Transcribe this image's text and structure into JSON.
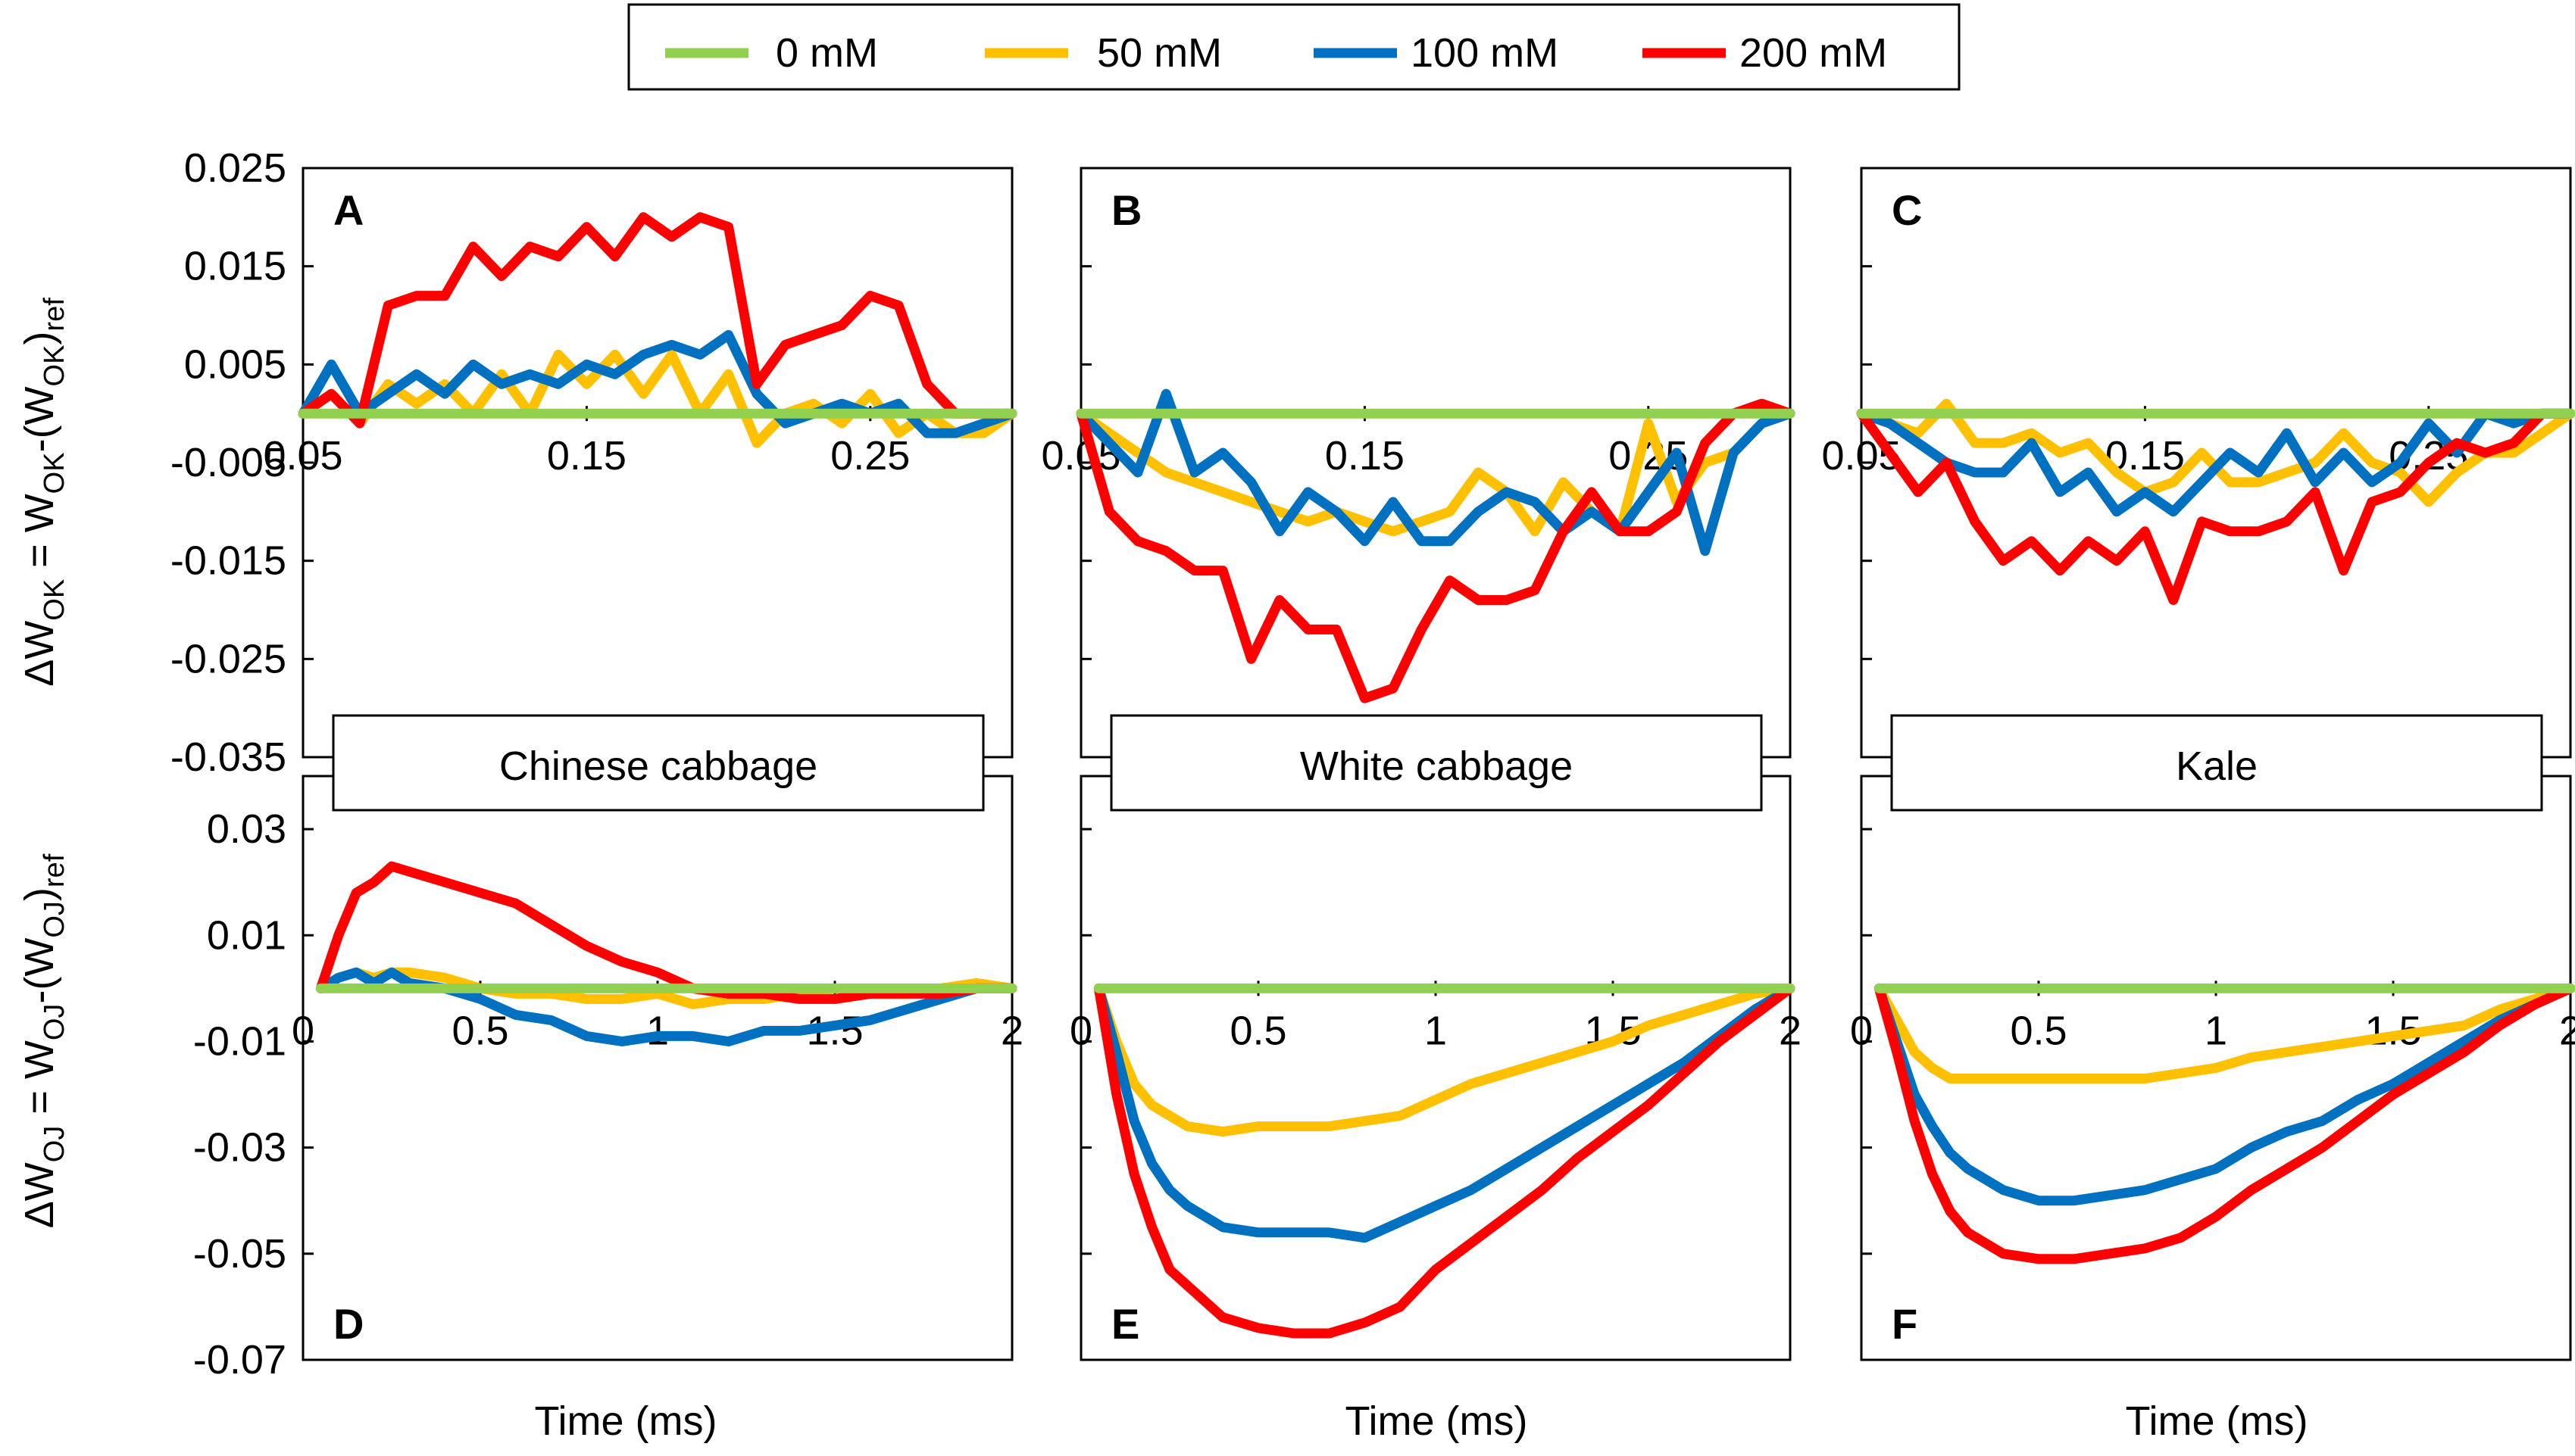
{
  "legend": {
    "entries": [
      {
        "label": "0 mM",
        "color": "#92D050"
      },
      {
        "label": "50 mM",
        "color": "#FFC000"
      },
      {
        "label": "100 mM",
        "color": "#0070C0"
      },
      {
        "label": "200 mM",
        "color": "#FF0000"
      }
    ]
  },
  "row_ylabels": {
    "top": {
      "main": "ΔW",
      "sub1": "OK",
      "mid": " = W",
      "sub2": "OK",
      "mid2": "-(W",
      "sub3": "OK",
      "mid3": ")",
      "sub4": "ref"
    },
    "bottom": {
      "main": "ΔW",
      "sub1": "OJ",
      "mid": " = W",
      "sub2": "OJ",
      "mid2": "-(W",
      "sub3": "OJ",
      "mid3": ")",
      "sub4": "ref"
    }
  },
  "column_titles": [
    "Chinese cabbage",
    "White cabbage",
    "Kale"
  ],
  "xlabel": "Time (ms)",
  "chart_data": [
    {
      "panel": "A",
      "type": "line",
      "species": "Chinese cabbage",
      "xlim": [
        0.05,
        0.3
      ],
      "ylim": [
        -0.035,
        0.025
      ],
      "xticks": [
        0.05,
        0.15,
        0.25
      ],
      "xtick_labels": [
        "0.05",
        "0.15",
        "0.25"
      ],
      "yticks": [
        0.025,
        0.015,
        0.005,
        -0.005,
        -0.015,
        -0.025,
        -0.035
      ],
      "ytick_labels": [
        "0.025",
        "0.015",
        "0.005",
        "-0.005",
        "-0.015",
        "-0.025",
        "-0.035"
      ],
      "x": [
        0.05,
        0.06,
        0.07,
        0.08,
        0.09,
        0.1,
        0.11,
        0.12,
        0.13,
        0.14,
        0.15,
        0.16,
        0.17,
        0.18,
        0.19,
        0.2,
        0.21,
        0.22,
        0.23,
        0.24,
        0.25,
        0.26,
        0.27,
        0.28,
        0.29,
        0.3
      ],
      "series": [
        {
          "name": "0 mM",
          "values": [
            0,
            0,
            0,
            0,
            0,
            0,
            0,
            0,
            0,
            0,
            0,
            0,
            0,
            0,
            0,
            0,
            0,
            0,
            0,
            0,
            0,
            0,
            0,
            0,
            0,
            0
          ]
        },
        {
          "name": "50 mM",
          "values": [
            0,
            0.002,
            -0.001,
            0.003,
            0.001,
            0.003,
            0.0,
            0.004,
            0.0,
            0.006,
            0.003,
            0.006,
            0.002,
            0.006,
            0.0,
            0.004,
            -0.003,
            0.0,
            0.001,
            -0.001,
            0.002,
            -0.002,
            0.0,
            -0.002,
            -0.002,
            0.0
          ]
        },
        {
          "name": "100 mM",
          "values": [
            0,
            0.005,
            0.0,
            0.002,
            0.004,
            0.002,
            0.005,
            0.003,
            0.004,
            0.003,
            0.005,
            0.004,
            0.006,
            0.007,
            0.006,
            0.008,
            0.002,
            -0.001,
            0.0,
            0.001,
            0.0,
            0.001,
            -0.002,
            -0.002,
            -0.001,
            0.0
          ]
        },
        {
          "name": "200 mM",
          "values": [
            0,
            0.002,
            -0.001,
            0.011,
            0.012,
            0.012,
            0.017,
            0.014,
            0.017,
            0.016,
            0.019,
            0.016,
            0.02,
            0.018,
            0.02,
            0.019,
            0.003,
            0.007,
            0.008,
            0.009,
            0.012,
            0.011,
            0.003,
            0.0,
            0.0,
            0.0
          ]
        }
      ]
    },
    {
      "panel": "B",
      "type": "line",
      "species": "White cabbage",
      "xlim": [
        0.05,
        0.3
      ],
      "ylim": [
        -0.035,
        0.025
      ],
      "xticks": [
        0.05,
        0.15,
        0.25
      ],
      "xtick_labels": [
        "0.05",
        "0.15",
        "0.25"
      ],
      "x": [
        0.05,
        0.06,
        0.07,
        0.08,
        0.09,
        0.1,
        0.11,
        0.12,
        0.13,
        0.14,
        0.15,
        0.16,
        0.17,
        0.18,
        0.19,
        0.2,
        0.21,
        0.22,
        0.23,
        0.24,
        0.25,
        0.26,
        0.27,
        0.28,
        0.29,
        0.3
      ],
      "series": [
        {
          "name": "0 mM",
          "values": [
            0,
            0,
            0,
            0,
            0,
            0,
            0,
            0,
            0,
            0,
            0,
            0,
            0,
            0,
            0,
            0,
            0,
            0,
            0,
            0,
            0,
            0,
            0,
            0,
            0,
            0
          ]
        },
        {
          "name": "50 mM",
          "values": [
            0,
            -0.002,
            -0.004,
            -0.006,
            -0.007,
            -0.008,
            -0.009,
            -0.01,
            -0.011,
            -0.01,
            -0.011,
            -0.012,
            -0.011,
            -0.01,
            -0.006,
            -0.008,
            -0.012,
            -0.007,
            -0.01,
            -0.012,
            -0.001,
            -0.009,
            -0.005,
            -0.004,
            -0.001,
            0.0
          ]
        },
        {
          "name": "100 mM",
          "values": [
            0,
            -0.003,
            -0.006,
            0.002,
            -0.006,
            -0.004,
            -0.007,
            -0.012,
            -0.008,
            -0.01,
            -0.013,
            -0.009,
            -0.013,
            -0.013,
            -0.01,
            -0.008,
            -0.009,
            -0.012,
            -0.01,
            -0.012,
            -0.008,
            -0.004,
            -0.014,
            -0.004,
            -0.001,
            0.0
          ]
        },
        {
          "name": "200 mM",
          "values": [
            0,
            -0.01,
            -0.013,
            -0.014,
            -0.016,
            -0.016,
            -0.025,
            -0.019,
            -0.022,
            -0.022,
            -0.029,
            -0.028,
            -0.022,
            -0.017,
            -0.019,
            -0.019,
            -0.018,
            -0.012,
            -0.008,
            -0.012,
            -0.012,
            -0.01,
            -0.003,
            0.0,
            0.001,
            0.0
          ]
        }
      ]
    },
    {
      "panel": "C",
      "type": "line",
      "species": "Kale",
      "xlim": [
        0.05,
        0.3
      ],
      "ylim": [
        -0.035,
        0.025
      ],
      "xticks": [
        0.05,
        0.15,
        0.25
      ],
      "xtick_labels": [
        "0.05",
        "0.15",
        "0.25"
      ],
      "x": [
        0.05,
        0.06,
        0.07,
        0.08,
        0.09,
        0.1,
        0.11,
        0.12,
        0.13,
        0.14,
        0.15,
        0.16,
        0.17,
        0.18,
        0.19,
        0.2,
        0.21,
        0.22,
        0.23,
        0.24,
        0.25,
        0.26,
        0.27,
        0.28,
        0.29,
        0.3
      ],
      "series": [
        {
          "name": "0 mM",
          "values": [
            0,
            0,
            0,
            0,
            0,
            0,
            0,
            0,
            0,
            0,
            0,
            0,
            0,
            0,
            0,
            0,
            0,
            0,
            0,
            0,
            0,
            0,
            0,
            0,
            0,
            0
          ]
        },
        {
          "name": "50 mM",
          "values": [
            0,
            -0.001,
            -0.002,
            0.001,
            -0.003,
            -0.003,
            -0.002,
            -0.004,
            -0.003,
            -0.006,
            -0.008,
            -0.007,
            -0.004,
            -0.007,
            -0.007,
            -0.006,
            -0.005,
            -0.002,
            -0.005,
            -0.006,
            -0.009,
            -0.006,
            -0.004,
            -0.004,
            -0.002,
            0.0
          ]
        },
        {
          "name": "100 mM",
          "values": [
            0,
            -0.001,
            -0.003,
            -0.005,
            -0.006,
            -0.006,
            -0.003,
            -0.008,
            -0.006,
            -0.01,
            -0.008,
            -0.01,
            -0.007,
            -0.004,
            -0.006,
            -0.002,
            -0.007,
            -0.004,
            -0.007,
            -0.005,
            -0.001,
            -0.004,
            0.0,
            -0.001,
            0.0,
            0.0
          ]
        },
        {
          "name": "200 mM",
          "values": [
            0,
            -0.004,
            -0.008,
            -0.005,
            -0.011,
            -0.015,
            -0.013,
            -0.016,
            -0.013,
            -0.015,
            -0.012,
            -0.019,
            -0.011,
            -0.012,
            -0.012,
            -0.011,
            -0.008,
            -0.016,
            -0.009,
            -0.008,
            -0.005,
            -0.003,
            -0.004,
            -0.003,
            0.0,
            0.0
          ]
        }
      ]
    },
    {
      "panel": "D",
      "type": "line",
      "species": "Chinese cabbage",
      "xlim": [
        0,
        2
      ],
      "ylim": [
        -0.07,
        0.04
      ],
      "xticks": [
        0,
        0.5,
        1,
        1.5,
        2
      ],
      "xtick_labels": [
        "0",
        "0.5",
        "1",
        "1.5",
        "2"
      ],
      "yticks": [
        0.03,
        0.01,
        -0.01,
        -0.03,
        -0.05,
        -0.07
      ],
      "ytick_labels": [
        "0.03",
        "0.01",
        "-0.01",
        "-0.03",
        "-0.05",
        "-0.07"
      ],
      "x": [
        0.05,
        0.1,
        0.15,
        0.2,
        0.25,
        0.3,
        0.4,
        0.5,
        0.6,
        0.7,
        0.8,
        0.9,
        1.0,
        1.1,
        1.2,
        1.3,
        1.4,
        1.5,
        1.6,
        1.7,
        1.8,
        1.9,
        2.0
      ],
      "series": [
        {
          "name": "0 mM",
          "values": [
            0,
            0,
            0,
            0,
            0,
            0,
            0,
            0,
            0,
            0,
            0,
            0,
            0,
            0,
            0,
            0,
            0,
            0,
            0,
            0,
            0,
            0,
            0
          ]
        },
        {
          "name": "50 mM",
          "values": [
            0,
            0.002,
            0.003,
            0.002,
            0.003,
            0.003,
            0.002,
            0.0,
            -0.001,
            -0.001,
            -0.002,
            -0.002,
            -0.001,
            -0.003,
            -0.002,
            -0.002,
            -0.001,
            -0.002,
            -0.001,
            -0.001,
            0.0,
            0.001,
            0.0
          ]
        },
        {
          "name": "100 mM",
          "values": [
            0,
            0.002,
            0.003,
            0.001,
            0.003,
            0.001,
            0.0,
            -0.002,
            -0.005,
            -0.006,
            -0.009,
            -0.01,
            -0.009,
            -0.009,
            -0.01,
            -0.008,
            -0.008,
            -0.007,
            -0.006,
            -0.004,
            -0.002,
            0.0,
            0.0
          ]
        },
        {
          "name": "200 mM",
          "values": [
            0,
            0.01,
            0.018,
            0.02,
            0.023,
            0.022,
            0.02,
            0.018,
            0.016,
            0.012,
            0.008,
            0.005,
            0.003,
            0.0,
            -0.001,
            -0.001,
            -0.002,
            -0.002,
            -0.001,
            -0.001,
            -0.001,
            0.0,
            0.0
          ]
        }
      ]
    },
    {
      "panel": "E",
      "type": "line",
      "species": "White cabbage",
      "xlim": [
        0,
        2
      ],
      "ylim": [
        -0.07,
        0.04
      ],
      "xticks": [
        0,
        0.5,
        1,
        1.5,
        2
      ],
      "xtick_labels": [
        "0",
        "0.5",
        "1",
        "1.5",
        "2"
      ],
      "x": [
        0.05,
        0.1,
        0.15,
        0.2,
        0.25,
        0.3,
        0.4,
        0.5,
        0.6,
        0.7,
        0.8,
        0.9,
        1.0,
        1.1,
        1.2,
        1.3,
        1.4,
        1.5,
        1.6,
        1.7,
        1.8,
        1.9,
        2.0
      ],
      "series": [
        {
          "name": "0 mM",
          "values": [
            0,
            0,
            0,
            0,
            0,
            0,
            0,
            0,
            0,
            0,
            0,
            0,
            0,
            0,
            0,
            0,
            0,
            0,
            0,
            0,
            0,
            0,
            0
          ]
        },
        {
          "name": "50 mM",
          "values": [
            0,
            -0.01,
            -0.018,
            -0.022,
            -0.024,
            -0.026,
            -0.027,
            -0.026,
            -0.026,
            -0.026,
            -0.025,
            -0.024,
            -0.021,
            -0.018,
            -0.016,
            -0.014,
            -0.012,
            -0.01,
            -0.007,
            -0.005,
            -0.003,
            -0.001,
            0.0
          ]
        },
        {
          "name": "100 mM",
          "values": [
            0,
            -0.012,
            -0.025,
            -0.033,
            -0.038,
            -0.041,
            -0.045,
            -0.046,
            -0.046,
            -0.046,
            -0.047,
            -0.044,
            -0.041,
            -0.038,
            -0.034,
            -0.03,
            -0.026,
            -0.022,
            -0.018,
            -0.014,
            -0.009,
            -0.004,
            0.0
          ]
        },
        {
          "name": "200 mM",
          "values": [
            0,
            -0.02,
            -0.035,
            -0.045,
            -0.053,
            -0.056,
            -0.062,
            -0.064,
            -0.065,
            -0.065,
            -0.063,
            -0.06,
            -0.053,
            -0.048,
            -0.043,
            -0.038,
            -0.032,
            -0.027,
            -0.022,
            -0.016,
            -0.01,
            -0.005,
            0.0
          ]
        }
      ]
    },
    {
      "panel": "F",
      "type": "line",
      "species": "Kale",
      "xlim": [
        0,
        2
      ],
      "ylim": [
        -0.07,
        0.04
      ],
      "xticks": [
        0,
        0.5,
        1,
        1.5,
        2
      ],
      "xtick_labels": [
        "0",
        "0.5",
        "1",
        "1.5",
        "2"
      ],
      "x": [
        0.05,
        0.1,
        0.15,
        0.2,
        0.25,
        0.3,
        0.4,
        0.5,
        0.6,
        0.7,
        0.8,
        0.9,
        1.0,
        1.1,
        1.2,
        1.3,
        1.4,
        1.5,
        1.6,
        1.7,
        1.8,
        1.9,
        2.0
      ],
      "series": [
        {
          "name": "0 mM",
          "values": [
            0,
            0,
            0,
            0,
            0,
            0,
            0,
            0,
            0,
            0,
            0,
            0,
            0,
            0,
            0,
            0,
            0,
            0,
            0,
            0,
            0,
            0,
            0
          ]
        },
        {
          "name": "50 mM",
          "values": [
            0,
            -0.006,
            -0.012,
            -0.015,
            -0.017,
            -0.017,
            -0.017,
            -0.017,
            -0.017,
            -0.017,
            -0.017,
            -0.016,
            -0.015,
            -0.013,
            -0.012,
            -0.011,
            -0.01,
            -0.009,
            -0.008,
            -0.007,
            -0.004,
            -0.002,
            0.0
          ]
        },
        {
          "name": "100 mM",
          "values": [
            0,
            -0.01,
            -0.02,
            -0.026,
            -0.031,
            -0.034,
            -0.038,
            -0.04,
            -0.04,
            -0.039,
            -0.038,
            -0.036,
            -0.034,
            -0.03,
            -0.027,
            -0.025,
            -0.021,
            -0.018,
            -0.014,
            -0.01,
            -0.006,
            -0.003,
            0.0
          ]
        },
        {
          "name": "200 mM",
          "values": [
            0,
            -0.012,
            -0.025,
            -0.035,
            -0.042,
            -0.046,
            -0.05,
            -0.051,
            -0.051,
            -0.05,
            -0.049,
            -0.047,
            -0.043,
            -0.038,
            -0.034,
            -0.03,
            -0.025,
            -0.02,
            -0.016,
            -0.012,
            -0.007,
            -0.003,
            0.0
          ]
        }
      ]
    }
  ]
}
